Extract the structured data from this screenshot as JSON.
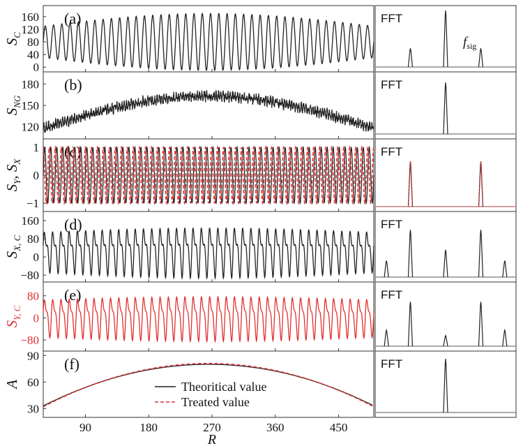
{
  "chart_data": [
    {
      "id": "a",
      "type": "line",
      "panel_label": "(a)",
      "ylabel": "S",
      "ylabel_sub": "C",
      "ylabel_color": "#111111",
      "yticks": [
        0,
        40,
        80,
        120,
        160
      ],
      "ylim": [
        -15,
        195
      ],
      "series": [
        {
          "name": "S_C",
          "color": "#222222",
          "style": "solid",
          "signal": {
            "offset": 80,
            "env": [
              50,
              90
            ],
            "periods": 40
          }
        }
      ],
      "fft": {
        "label": "FFT",
        "annotation": "f",
        "annotation_sub": "sig",
        "peaks": [
          {
            "pos": 0.5,
            "height": 1.0
          },
          {
            "pos": 0.25,
            "height": 0.33
          },
          {
            "pos": 0.75,
            "height": 0.33
          }
        ]
      }
    },
    {
      "id": "b",
      "type": "line",
      "panel_label": "(b)",
      "ylabel": "S",
      "ylabel_sub": "NG",
      "ylabel_color": "#111111",
      "yticks": [
        120,
        150,
        180
      ],
      "ylim": [
        103,
        197
      ],
      "series": [
        {
          "name": "S_NG",
          "color": "#222222",
          "style": "solid",
          "signal": {
            "offset": 118,
            "env": [
              0,
              45
            ],
            "periods": 140,
            "noise": 5
          }
        }
      ],
      "fft": {
        "label": "FFT",
        "peaks": [
          {
            "pos": 0.5,
            "height": 0.9
          }
        ]
      }
    },
    {
      "id": "c",
      "type": "line",
      "panel_label": "(c)",
      "ylabel": "S",
      "ylabel_sub": "Y",
      "ylabel2": ", S",
      "ylabel2_sub": "X",
      "ylabel_color": "#111111",
      "yticks": [
        -1,
        0,
        1
      ],
      "ylim": [
        -1.3,
        1.3
      ],
      "series": [
        {
          "name": "S_Y",
          "color": "#222222",
          "style": "solid",
          "signal": {
            "offset": 0,
            "env": [
              1,
              1
            ],
            "periods": 55
          }
        },
        {
          "name": "S_X",
          "color": "#e03030",
          "style": "dashed",
          "signal": {
            "offset": 0,
            "env": [
              1,
              1
            ],
            "periods": 55,
            "phase": 1.57
          }
        }
      ],
      "fft": {
        "label": "FFT",
        "peaks": [
          {
            "pos": 0.25,
            "height": 0.72
          },
          {
            "pos": 0.75,
            "height": 0.72
          }
        ],
        "overlay_color": "#e03030"
      }
    },
    {
      "id": "d",
      "type": "line",
      "panel_label": "(d)",
      "ylabel": "S",
      "ylabel_sub": "X, C",
      "ylabel_color": "#111111",
      "yticks": [
        -80,
        0,
        80,
        160
      ],
      "ylim": [
        -110,
        200
      ],
      "series": [
        {
          "name": "S_X,C",
          "color": "#222222",
          "style": "solid",
          "signal": {
            "offset": 30,
            "env": [
              105,
              130
            ],
            "periods": 40,
            "harm": 0.35
          }
        }
      ],
      "fft": {
        "label": "FFT",
        "peaks": [
          {
            "pos": 0.5,
            "height": 0.45
          },
          {
            "pos": 0.25,
            "height": 0.78
          },
          {
            "pos": 0.75,
            "height": 0.78
          },
          {
            "pos": 0.08,
            "height": 0.27
          },
          {
            "pos": 0.92,
            "height": 0.27
          }
        ]
      }
    },
    {
      "id": "e",
      "type": "line",
      "panel_label": "(e)",
      "ylabel": "S",
      "ylabel_sub": "Y, C",
      "ylabel_color": "#e03030",
      "yticks": [
        -80,
        0,
        80
      ],
      "ylim": [
        -120,
        130
      ],
      "series": [
        {
          "name": "S_Y,C",
          "color": "#e03030",
          "style": "solid",
          "signal": {
            "offset": 5,
            "env": [
              80,
              95
            ],
            "periods": 40,
            "harm": 0.3
          }
        }
      ],
      "fft": {
        "label": "FFT",
        "peaks": [
          {
            "pos": 0.25,
            "height": 0.75
          },
          {
            "pos": 0.75,
            "height": 0.75
          },
          {
            "pos": 0.08,
            "height": 0.27
          },
          {
            "pos": 0.92,
            "height": 0.27
          },
          {
            "pos": 0.5,
            "height": 0.18
          }
        ]
      }
    },
    {
      "id": "f",
      "type": "line",
      "panel_label": "(f)",
      "ylabel": "A",
      "ylabel_sub": "",
      "ylabel_color": "#111111",
      "yticks": [
        30,
        60,
        90
      ],
      "ylim": [
        20,
        95
      ],
      "xlabel": "R",
      "xticks": [
        90,
        180,
        270,
        360,
        450
      ],
      "xlim": [
        30,
        500
      ],
      "series": [
        {
          "name": "Theoritical value",
          "color": "#222222",
          "style": "solid",
          "parabola": {
            "peak_x": 265,
            "peak_y": 80,
            "edge_y": 33
          }
        },
        {
          "name": "Treated value",
          "color": "#e03030",
          "style": "dashed",
          "parabola": {
            "peak_x": 265,
            "peak_y": 81,
            "edge_y": 32
          }
        }
      ],
      "legend": {
        "position": "bottom-center",
        "entries": [
          "Theoritical value",
          "Treated value"
        ]
      },
      "fft": {
        "label": "FFT",
        "peaks": [
          {
            "pos": 0.5,
            "height": 0.95
          }
        ]
      }
    }
  ]
}
